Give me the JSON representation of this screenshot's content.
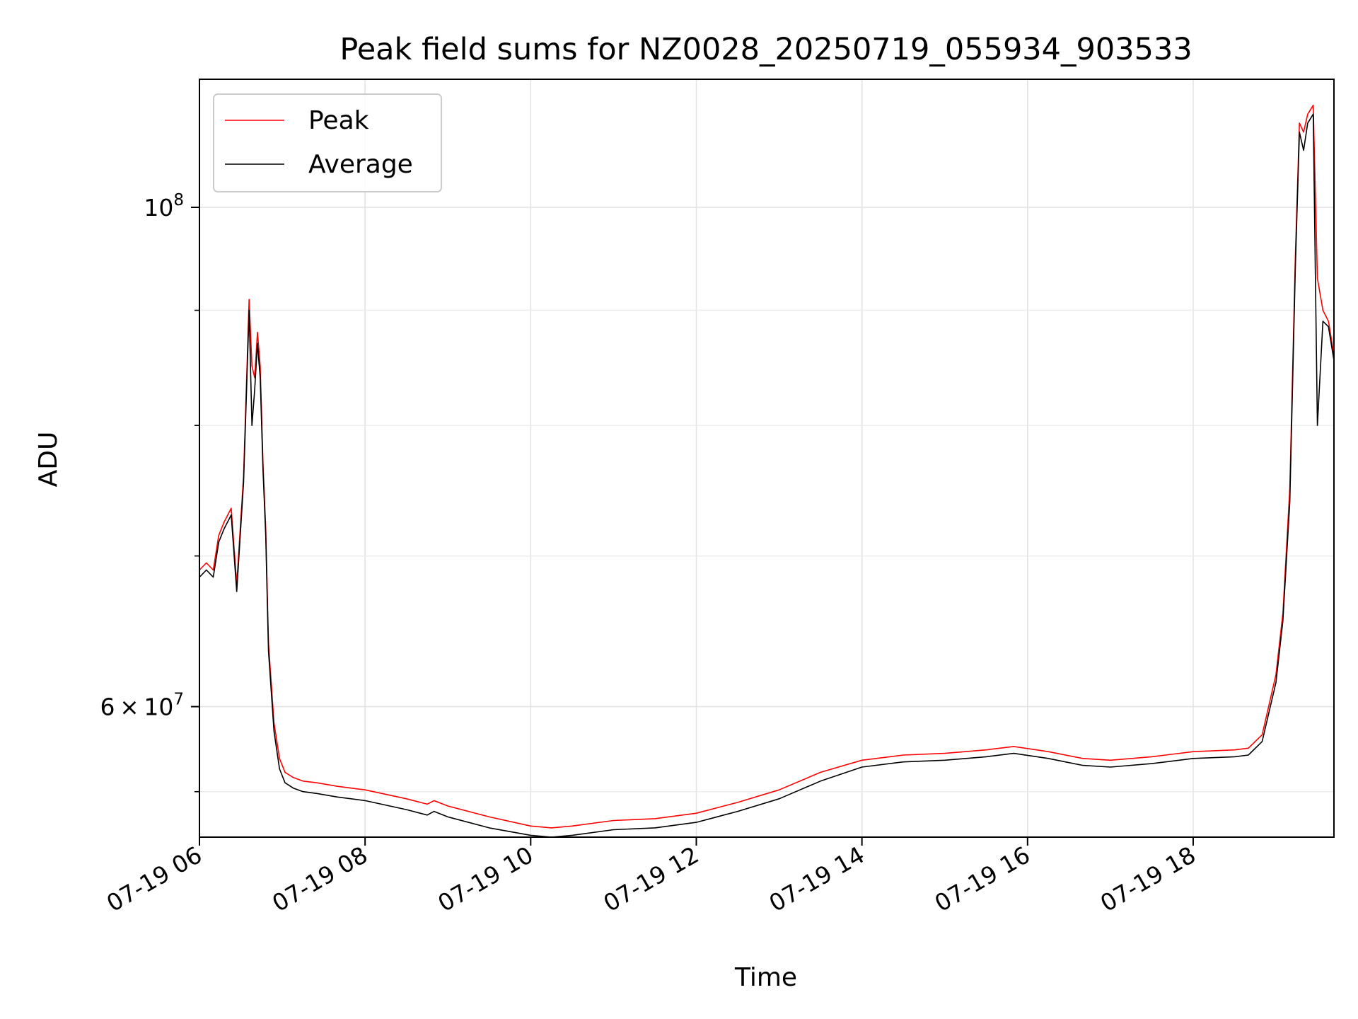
{
  "chart_data": {
    "type": "line",
    "title": "Peak field sums for NZ0028_20250719_055934_903533",
    "xlabel": "Time",
    "ylabel": "ADU",
    "yscale": "log",
    "xlim": [
      "2025-07-19 06:00",
      "2025-07-19 19:42"
    ],
    "ylim": [
      52500000,
      114000000
    ],
    "x_ticks": [
      "07-19 06",
      "07-19 08",
      "07-19 10",
      "07-19 12",
      "07-19 14",
      "07-19 16",
      "07-19 18"
    ],
    "y_ticks": [
      {
        "value": 100000000,
        "mantissa": "",
        "base": "10",
        "exp": "8"
      },
      {
        "value": 60000000,
        "mantissa": "6",
        "base": "10",
        "exp": "7"
      }
    ],
    "grid": true,
    "legend_position": "upper-left",
    "series": [
      {
        "name": "Peak",
        "color": "#ff0000",
        "x": [
          "2025-07-19 06:00",
          "2025-07-19 06:05",
          "2025-07-19 06:10",
          "2025-07-19 06:14",
          "2025-07-19 06:18",
          "2025-07-19 06:23",
          "2025-07-19 06:27",
          "2025-07-19 06:32",
          "2025-07-19 06:36",
          "2025-07-19 06:38",
          "2025-07-19 06:40",
          "2025-07-19 06:42",
          "2025-07-19 06:44",
          "2025-07-19 06:46",
          "2025-07-19 06:48",
          "2025-07-19 06:50",
          "2025-07-19 06:54",
          "2025-07-19 06:58",
          "2025-07-19 07:02",
          "2025-07-19 07:08",
          "2025-07-19 07:15",
          "2025-07-19 07:25",
          "2025-07-19 07:40",
          "2025-07-19 08:00",
          "2025-07-19 08:30",
          "2025-07-19 08:45",
          "2025-07-19 08:50",
          "2025-07-19 09:00",
          "2025-07-19 09:30",
          "2025-07-19 10:00",
          "2025-07-19 10:15",
          "2025-07-19 10:30",
          "2025-07-19 11:00",
          "2025-07-19 11:30",
          "2025-07-19 12:00",
          "2025-07-19 12:30",
          "2025-07-19 13:00",
          "2025-07-19 13:30",
          "2025-07-19 14:00",
          "2025-07-19 14:30",
          "2025-07-19 15:00",
          "2025-07-19 15:30",
          "2025-07-19 15:50",
          "2025-07-19 16:15",
          "2025-07-19 16:40",
          "2025-07-19 17:00",
          "2025-07-19 17:30",
          "2025-07-19 18:00",
          "2025-07-19 18:30",
          "2025-07-19 18:40",
          "2025-07-19 18:50",
          "2025-07-19 19:00",
          "2025-07-19 19:05",
          "2025-07-19 19:10",
          "2025-07-19 19:14",
          "2025-07-19 19:17",
          "2025-07-19 19:20",
          "2025-07-19 19:23",
          "2025-07-19 19:27",
          "2025-07-19 19:30",
          "2025-07-19 19:34",
          "2025-07-19 19:38",
          "2025-07-19 19:42"
        ],
        "y": [
          69000000,
          69500000,
          69000000,
          71500000,
          72500000,
          73500000,
          68000000,
          76000000,
          91000000,
          85000000,
          84000000,
          88000000,
          85000000,
          77000000,
          72000000,
          64000000,
          59000000,
          56900000,
          56100000,
          55800000,
          55600000,
          55500000,
          55300000,
          55100000,
          54600000,
          54300000,
          54500000,
          54200000,
          53600000,
          53100000,
          53000000,
          53100000,
          53400000,
          53500000,
          53800000,
          54400000,
          55100000,
          56100000,
          56800000,
          57100000,
          57200000,
          57400000,
          57600000,
          57300000,
          56900000,
          56800000,
          57000000,
          57300000,
          57400000,
          57500000,
          58300000,
          62000000,
          66000000,
          75000000,
          95000000,
          109000000,
          108000000,
          110000000,
          111000000,
          93000000,
          90000000,
          89000000,
          86000000
        ]
      },
      {
        "name": "Average",
        "color": "#000000",
        "x": [
          "2025-07-19 06:00",
          "2025-07-19 06:05",
          "2025-07-19 06:10",
          "2025-07-19 06:14",
          "2025-07-19 06:18",
          "2025-07-19 06:23",
          "2025-07-19 06:27",
          "2025-07-19 06:32",
          "2025-07-19 06:36",
          "2025-07-19 06:38",
          "2025-07-19 06:40",
          "2025-07-19 06:42",
          "2025-07-19 06:44",
          "2025-07-19 06:46",
          "2025-07-19 06:48",
          "2025-07-19 06:50",
          "2025-07-19 06:54",
          "2025-07-19 06:58",
          "2025-07-19 07:02",
          "2025-07-19 07:08",
          "2025-07-19 07:15",
          "2025-07-19 07:25",
          "2025-07-19 07:40",
          "2025-07-19 08:00",
          "2025-07-19 08:30",
          "2025-07-19 08:45",
          "2025-07-19 08:50",
          "2025-07-19 09:00",
          "2025-07-19 09:30",
          "2025-07-19 10:00",
          "2025-07-19 10:15",
          "2025-07-19 10:30",
          "2025-07-19 11:00",
          "2025-07-19 11:30",
          "2025-07-19 12:00",
          "2025-07-19 12:30",
          "2025-07-19 13:00",
          "2025-07-19 13:30",
          "2025-07-19 14:00",
          "2025-07-19 14:30",
          "2025-07-19 15:00",
          "2025-07-19 15:30",
          "2025-07-19 15:50",
          "2025-07-19 16:15",
          "2025-07-19 16:40",
          "2025-07-19 17:00",
          "2025-07-19 17:30",
          "2025-07-19 18:00",
          "2025-07-19 18:30",
          "2025-07-19 18:40",
          "2025-07-19 18:50",
          "2025-07-19 19:00",
          "2025-07-19 19:05",
          "2025-07-19 19:10",
          "2025-07-19 19:14",
          "2025-07-19 19:17",
          "2025-07-19 19:20",
          "2025-07-19 19:23",
          "2025-07-19 19:27",
          "2025-07-19 19:30",
          "2025-07-19 19:34",
          "2025-07-19 19:38",
          "2025-07-19 19:42"
        ],
        "y": [
          68500000,
          69000000,
          68500000,
          71000000,
          72000000,
          73000000,
          67500000,
          75500000,
          90000000,
          80000000,
          83000000,
          87000000,
          84000000,
          76500000,
          71500000,
          63500000,
          58500000,
          56300000,
          55500000,
          55200000,
          55000000,
          54900000,
          54700000,
          54500000,
          54000000,
          53700000,
          53900000,
          53600000,
          53000000,
          52600000,
          52500000,
          52600000,
          52900000,
          53000000,
          53300000,
          53900000,
          54600000,
          55600000,
          56400000,
          56700000,
          56800000,
          57000000,
          57200000,
          56900000,
          56500000,
          56400000,
          56600000,
          56900000,
          57000000,
          57100000,
          57900000,
          61500000,
          65500000,
          74000000,
          94000000,
          108000000,
          106000000,
          109000000,
          110000000,
          80000000,
          89000000,
          88500000,
          85500000
        ]
      }
    ]
  }
}
